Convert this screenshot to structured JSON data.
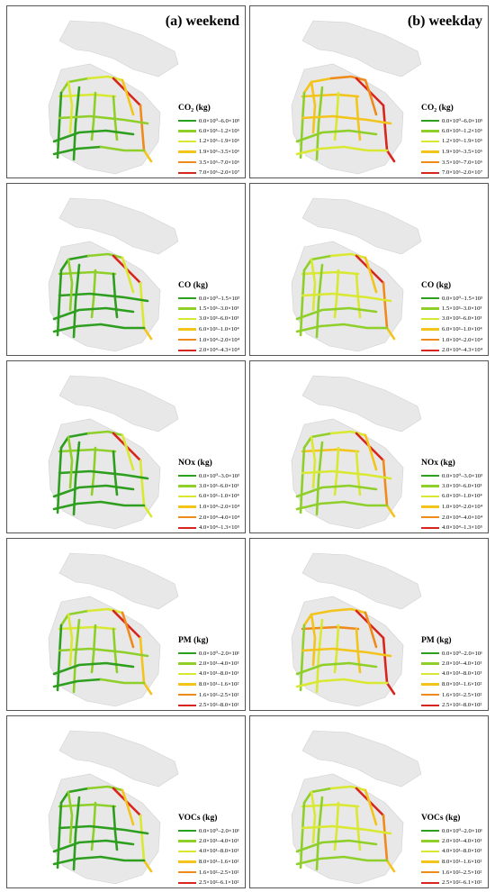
{
  "colors": {
    "level1": "#2e9e1f",
    "level2": "#8fcf2a",
    "level3": "#d9e832",
    "level4": "#f2c41c",
    "level5": "#ef8a1d",
    "level6": "#d7261e",
    "land": "#e8e8e8",
    "border": "#555555"
  },
  "columns": [
    {
      "heading": "(a) weekend"
    },
    {
      "heading": "(b) weekday"
    }
  ],
  "panels": [
    {
      "pollutant": "CO₂ (kg)",
      "labels": [
        "0.0×10⁰–6.0×10⁵",
        "6.0×10⁵–1.2×10⁶",
        "1.2×10⁶–1.9×10⁶",
        "1.9×10⁶–3.5×10⁶",
        "3.5×10⁶–7.0×10⁶",
        "7.0×10⁶–2.0×10⁷"
      ],
      "weekend_levels": [
        2,
        3,
        3,
        6,
        5,
        4,
        1,
        1,
        2,
        2,
        1,
        2,
        4,
        1,
        2,
        3
      ],
      "weekday_levels": [
        4,
        5,
        4,
        6,
        6,
        6,
        2,
        2,
        3,
        4,
        2,
        4,
        5,
        3,
        3,
        4
      ]
    },
    {
      "pollutant": "CO (kg)",
      "labels": [
        "0.0×10⁰–1.5×10³",
        "1.5×10³–3.0×10³",
        "3.0×10³–6.0×10³",
        "6.0×10³–1.0×10⁴",
        "1.0×10⁴–2.0×10⁴",
        "2.0×10⁴–4.3×10⁴"
      ],
      "weekend_levels": [
        1,
        2,
        2,
        6,
        3,
        4,
        1,
        1,
        2,
        1,
        1,
        1,
        3,
        1,
        1,
        2
      ],
      "weekday_levels": [
        2,
        3,
        3,
        6,
        5,
        4,
        2,
        2,
        3,
        3,
        2,
        3,
        4,
        2,
        2,
        3
      ]
    },
    {
      "pollutant": "NOx (kg)",
      "labels": [
        "0.0×10⁰–3.0×10³",
        "3.0×10³–6.0×10³",
        "6.0×10³–1.0×10⁴",
        "1.0×10⁴–2.0×10⁴",
        "2.0×10⁴–4.0×10⁴",
        "4.0×10⁴–1.3×10⁵"
      ],
      "weekend_levels": [
        1,
        2,
        2,
        6,
        3,
        3,
        1,
        1,
        2,
        1,
        1,
        1,
        3,
        1,
        1,
        2
      ],
      "weekday_levels": [
        2,
        3,
        4,
        6,
        5,
        4,
        2,
        2,
        3,
        3,
        2,
        3,
        4,
        2,
        2,
        3
      ]
    },
    {
      "pollutant": "PM (kg)",
      "labels": [
        "0.0×10⁰–2.0×10¹",
        "2.0×10¹–4.0×10¹",
        "4.0×10¹–8.0×10¹",
        "8.0×10¹–1.6×10²",
        "1.6×10²–2.5×10²",
        "2.5×10²–8.0×10²"
      ],
      "weekend_levels": [
        2,
        3,
        3,
        6,
        4,
        4,
        1,
        2,
        2,
        2,
        1,
        2,
        5,
        1,
        2,
        3
      ],
      "weekday_levels": [
        4,
        4,
        5,
        6,
        6,
        6,
        2,
        3,
        3,
        4,
        2,
        4,
        5,
        3,
        3,
        4
      ]
    },
    {
      "pollutant": "VOCs (kg)",
      "labels": [
        "0.0×10⁰–2.0×10¹",
        "2.0×10¹–4.0×10¹",
        "4.0×10¹–8.0×10¹",
        "8.0×10¹–1.6×10²",
        "1.6×10²–2.5×10²",
        "2.5×10²–6.1×10²"
      ],
      "weekend_levels": [
        1,
        2,
        2,
        6,
        3,
        4,
        1,
        1,
        2,
        1,
        1,
        1,
        4,
        1,
        1,
        2
      ],
      "weekday_levels": [
        2,
        3,
        3,
        6,
        5,
        4,
        2,
        2,
        3,
        3,
        2,
        3,
        4,
        2,
        2,
        3
      ]
    }
  ]
}
